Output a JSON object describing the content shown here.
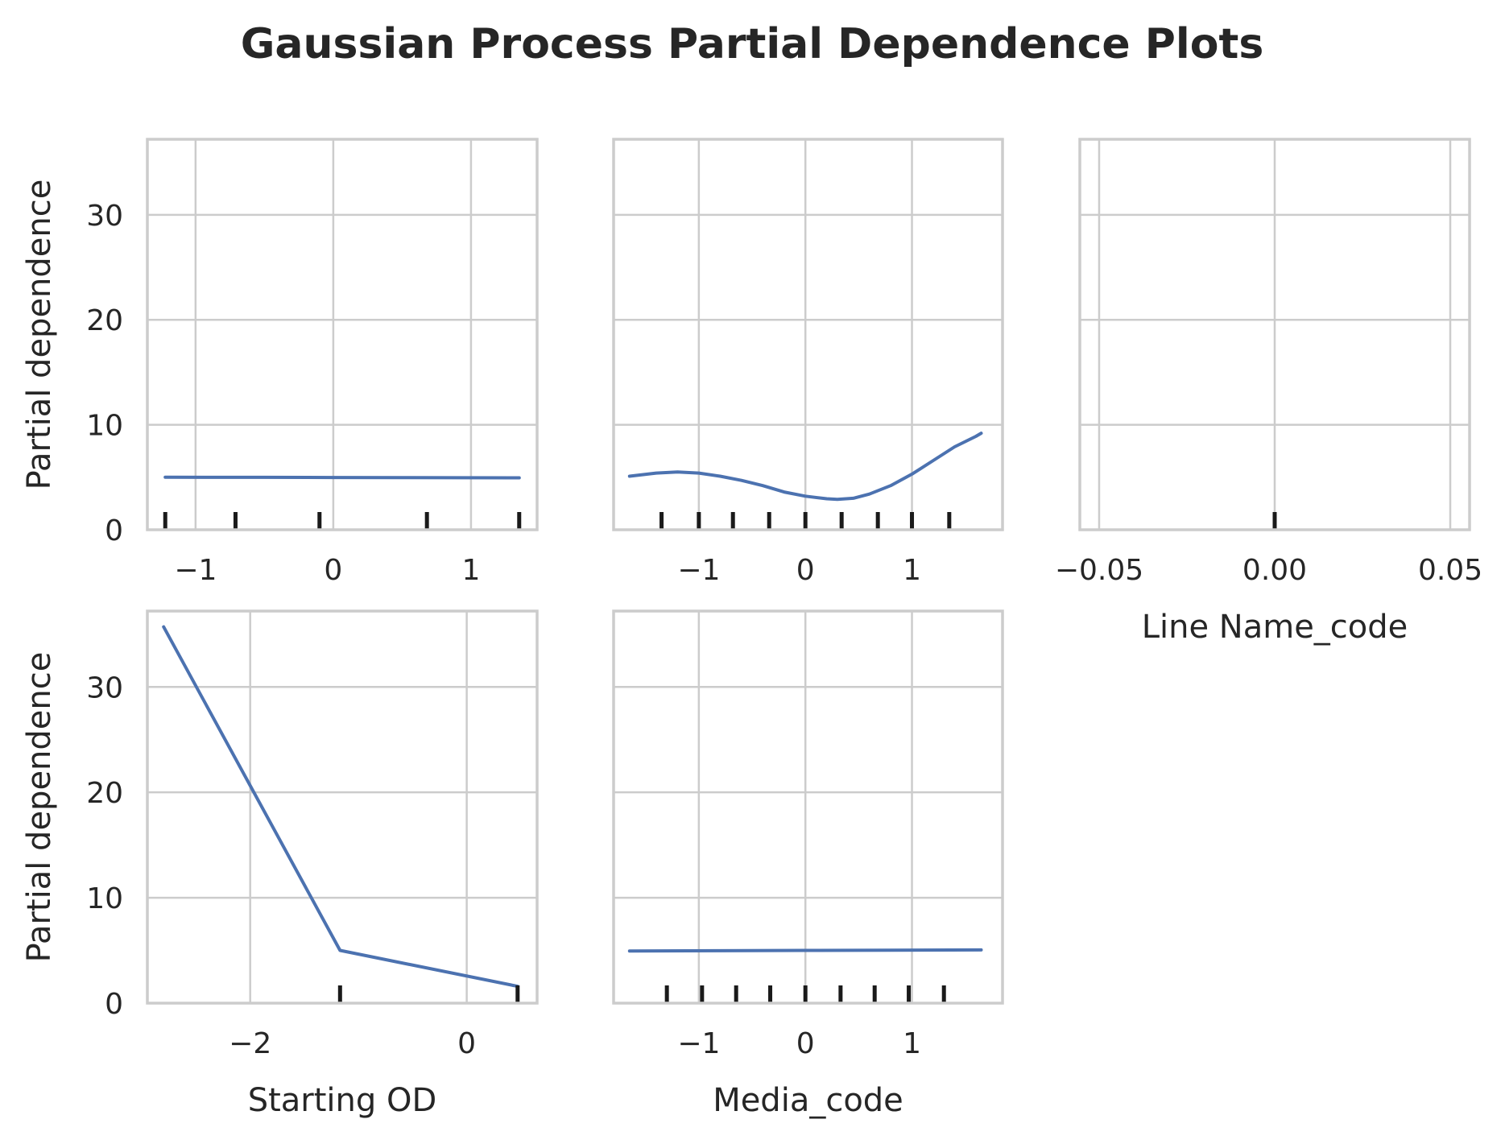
{
  "figure": {
    "title": "Gaussian Process Partial Dependence Plots"
  },
  "colors": {
    "line": "#4c72b0",
    "grid": "#cccccc",
    "spine": "#cccccc",
    "rug": "#1a1a1a",
    "text": "#262626",
    "background": "#ffffff"
  },
  "chart_data": [
    {
      "type": "line",
      "xlabel": "",
      "ylabel": "Partial dependence",
      "xlim": [
        -1.35,
        1.48
      ],
      "ylim": [
        0,
        37.2
      ],
      "xticks": [
        -1,
        0,
        1
      ],
      "xtick_labels": [
        "−1",
        "0",
        "1"
      ],
      "yticks": [
        0,
        10,
        20,
        30
      ],
      "ytick_labels": [
        "0",
        "10",
        "20",
        "30"
      ],
      "grid": true,
      "series": [
        {
          "x": [
            -1.22,
            -0.5,
            0,
            0.5,
            1.35
          ],
          "y": [
            5.0,
            4.99,
            4.98,
            4.97,
            4.95
          ]
        }
      ],
      "rug": [
        -1.22,
        -0.71,
        -0.1,
        0.68,
        1.35
      ]
    },
    {
      "type": "line",
      "xlabel": "",
      "ylabel": "",
      "xlim": [
        -1.8,
        1.85
      ],
      "ylim": [
        0,
        37.2
      ],
      "xticks": [
        -1,
        0,
        1
      ],
      "xtick_labels": [
        "−1",
        "0",
        "1"
      ],
      "yticks": [
        0,
        10,
        20,
        30
      ],
      "ytick_labels": [],
      "grid": true,
      "series": [
        {
          "x": [
            -1.65,
            -1.4,
            -1.2,
            -1.0,
            -0.8,
            -0.6,
            -0.4,
            -0.2,
            0.0,
            0.2,
            0.3,
            0.45,
            0.6,
            0.8,
            1.0,
            1.2,
            1.4,
            1.6,
            1.65
          ],
          "y": [
            5.1,
            5.4,
            5.5,
            5.4,
            5.1,
            4.7,
            4.2,
            3.6,
            3.2,
            2.95,
            2.9,
            3.0,
            3.4,
            4.2,
            5.3,
            6.6,
            7.9,
            8.9,
            9.2
          ]
        }
      ],
      "rug": [
        -1.35,
        -1.0,
        -0.68,
        -0.34,
        0.0,
        0.34,
        0.68,
        1.0,
        1.35
      ]
    },
    {
      "type": "line",
      "xlabel": "Line Name_code",
      "ylabel": "",
      "xlim": [
        -0.0555,
        0.0555
      ],
      "ylim": [
        0,
        37.2
      ],
      "xticks": [
        -0.05,
        0.0,
        0.05
      ],
      "xtick_labels": [
        "−0.05",
        "0.00",
        "0.05"
      ],
      "yticks": [
        0,
        10,
        20,
        30
      ],
      "ytick_labels": [],
      "grid": true,
      "series": [],
      "rug": [
        0.0
      ]
    },
    {
      "type": "line",
      "xlabel": "Starting OD",
      "ylabel": "Partial dependence",
      "xlim": [
        -2.95,
        0.65
      ],
      "ylim": [
        0,
        37.2
      ],
      "xticks": [
        -2,
        0
      ],
      "xtick_labels": [
        "−2",
        "0"
      ],
      "yticks": [
        0,
        10,
        20,
        30
      ],
      "ytick_labels": [
        "0",
        "10",
        "20",
        "30"
      ],
      "grid": true,
      "series": [
        {
          "x": [
            -2.8,
            -1.17,
            0.47
          ],
          "y": [
            35.7,
            5.0,
            1.6
          ]
        }
      ],
      "rug": [
        -1.17,
        0.47
      ]
    },
    {
      "type": "line",
      "xlabel": "Media_code",
      "ylabel": "",
      "xlim": [
        -1.8,
        1.85
      ],
      "ylim": [
        0,
        37.2
      ],
      "xticks": [
        -1,
        0,
        1
      ],
      "xtick_labels": [
        "−1",
        "0",
        "1"
      ],
      "yticks": [
        0,
        10,
        20,
        30
      ],
      "ytick_labels": [],
      "grid": true,
      "series": [
        {
          "x": [
            -1.65,
            -0.8,
            0,
            0.8,
            1.65
          ],
          "y": [
            4.95,
            4.97,
            5.0,
            5.02,
            5.05
          ]
        }
      ],
      "rug": [
        -1.3,
        -0.97,
        -0.65,
        -0.33,
        0.0,
        0.33,
        0.65,
        0.97,
        1.3
      ]
    }
  ]
}
